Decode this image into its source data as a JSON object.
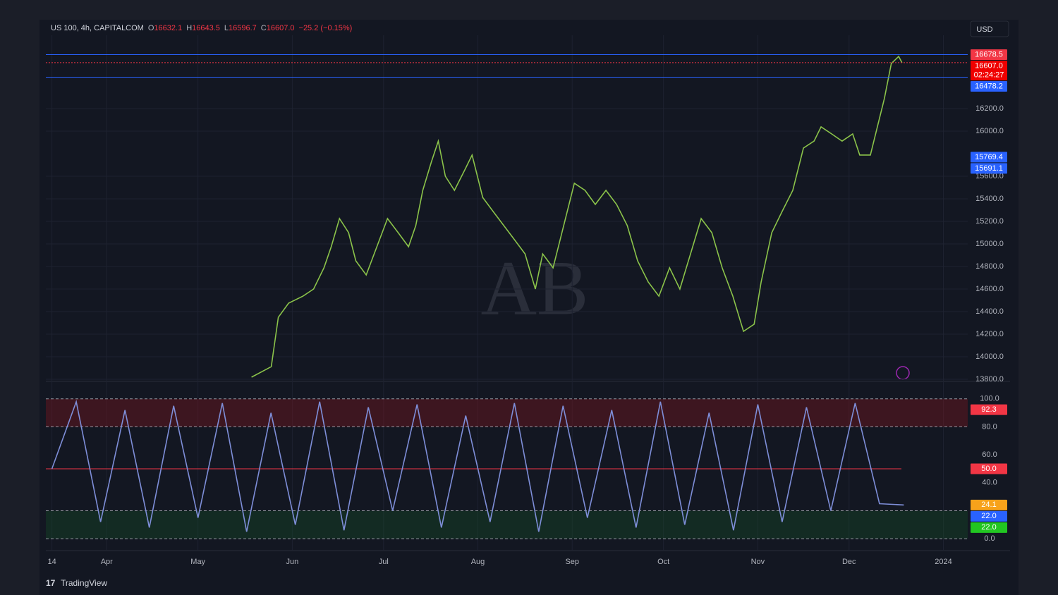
{
  "header": {
    "title": "US 100, 4h, CAPITALCOM",
    "ohlc": [
      {
        "label": "O",
        "text": "16632.1"
      },
      {
        "label": "H",
        "text": "16643.5"
      },
      {
        "label": "L",
        "text": "16596.7"
      },
      {
        "label": "C",
        "text": "16607.0"
      }
    ],
    "change": "−25.2 (−0.15%)",
    "currency": "USD"
  },
  "branding": "TradingView",
  "watermark": "AB",
  "chart_data": [
    {
      "type": "line",
      "color": "#8bc34a",
      "x": [
        65.6,
        72.1,
        74.4,
        77.8,
        82.5,
        86.0,
        89.4,
        91.8,
        94.5,
        97.5,
        99.9,
        103.3,
        106.8,
        110.3,
        113.8,
        117.2,
        119.6,
        121.9,
        124.7,
        127.0,
        129.3,
        132.3,
        135.8,
        138.1,
        141.6,
        145.0,
        148.5,
        152.0,
        155.5,
        158.9,
        161.3,
        164.7,
        168.2,
        171.7,
        175.2,
        178.6,
        182.1,
        185.6,
        189.1,
        192.5,
        196.0,
        199.5,
        203.0,
        206.4,
        209.9,
        213.4,
        216.9,
        220.3,
        223.8,
        227.3,
        230.8,
        233.1,
        236.6,
        240.0,
        243.5,
        247.0,
        250.5,
        252.8,
        256.3,
        259.7,
        263.2,
        265.5,
        269.0,
        271.3,
        273.6,
        275.9,
        278.3,
        279.4
      ],
      "values": [
        13819,
        13912,
        14350,
        14475,
        14537,
        14600,
        14788,
        14975,
        15225,
        15100,
        14850,
        14725,
        14975,
        15225,
        15100,
        14975,
        15163,
        15475,
        15725,
        15912,
        15600,
        15475,
        15662,
        15788,
        15412,
        15288,
        15163,
        15038,
        14912,
        14600,
        14912,
        14788,
        15163,
        15538,
        15475,
        15350,
        15475,
        15350,
        15163,
        14850,
        14662,
        14537,
        14788,
        14600,
        14912,
        15225,
        15100,
        14788,
        14537,
        14225,
        14288,
        14662,
        15100,
        15288,
        15475,
        15850,
        15912,
        16038,
        15975,
        15912,
        15975,
        15788,
        15788,
        16038,
        16288,
        16600,
        16662,
        16607
      ],
      "xlim": [
        -2,
        301
      ],
      "xticks": [
        {
          "value": 0,
          "label": "14"
        },
        {
          "value": 18,
          "label": "Apr"
        },
        {
          "value": 48,
          "label": "May"
        },
        {
          "value": 79,
          "label": "Jun"
        },
        {
          "value": 109,
          "label": "Jul"
        },
        {
          "value": 140,
          "label": "Aug"
        },
        {
          "value": 171,
          "label": "Sep"
        },
        {
          "value": 201,
          "label": "Oct"
        },
        {
          "value": 232,
          "label": "Nov"
        },
        {
          "value": 262,
          "label": "Dec"
        },
        {
          "value": 293,
          "label": "2024"
        }
      ],
      "ylim": [
        13787.5,
        16850
      ],
      "yticks": [
        {
          "value": 13800,
          "label": "13800.0"
        },
        {
          "value": 14000,
          "label": "14000.0"
        },
        {
          "value": 14200,
          "label": "14200.0"
        },
        {
          "value": 14400,
          "label": "14400.0"
        },
        {
          "value": 14600,
          "label": "14600.0"
        },
        {
          "value": 14800,
          "label": "14800.0"
        },
        {
          "value": 15000,
          "label": "15000.0"
        },
        {
          "value": 15200,
          "label": "15200.0"
        },
        {
          "value": 15400,
          "label": "15400.0"
        },
        {
          "value": 15600,
          "label": "15600.0"
        },
        {
          "value": 16000,
          "label": "16000.0"
        },
        {
          "value": 16200,
          "label": "16200.0"
        }
      ],
      "grid": true,
      "price_labels": [
        {
          "value": 16678.5,
          "color": "#f23645",
          "line": "solid",
          "line_color": "#2962ff"
        },
        {
          "value": 16607,
          "label": "16607.0",
          "countdown": "02:24:27",
          "color": "#f00000",
          "line": "dotted",
          "line_color": "#f23645"
        },
        {
          "value": 16478.2,
          "color": "#2962ff",
          "line": "solid",
          "line_color": "#2962ff"
        },
        {
          "value": 15769.4,
          "color": "#2962ff"
        },
        {
          "value": 15691.1,
          "color": "#2962ff"
        }
      ]
    },
    {
      "type": "line",
      "color": "#7e8ed8",
      "x": [
        0,
        8,
        16,
        24,
        32,
        40,
        48,
        56,
        64,
        72,
        80,
        88,
        96,
        104,
        112,
        120,
        128,
        136,
        144,
        152,
        160,
        168,
        176,
        184,
        192,
        200,
        208,
        216,
        224,
        232,
        240,
        248,
        256,
        264,
        272,
        280
      ],
      "values": [
        50,
        98,
        12,
        92,
        8,
        95,
        15,
        97,
        5,
        90,
        10,
        98,
        6,
        94,
        20,
        96,
        8,
        88,
        12,
        97,
        5,
        95,
        15,
        92,
        8,
        98,
        10,
        90,
        6,
        96,
        12,
        94,
        20,
        97,
        25,
        24.1
      ],
      "xlim": [
        -2,
        301
      ],
      "ylim": [
        -8,
        112
      ],
      "yticks": [
        {
          "value": 0,
          "label": "0.0"
        },
        {
          "value": 40,
          "label": "40.0"
        },
        {
          "value": 60,
          "label": "60.0"
        },
        {
          "value": 80,
          "label": "80.0"
        },
        {
          "value": 100,
          "label": "100.0"
        }
      ],
      "bands": [
        {
          "from": 80,
          "to": 100,
          "color": "rgba(140,20,30,0.35)"
        },
        {
          "from": 0,
          "to": 20,
          "color": "rgba(20,90,40,0.3)"
        }
      ],
      "dashed_levels": [
        100,
        80,
        20,
        0
      ],
      "midline": 50,
      "price_labels": [
        {
          "value": 92.3,
          "color": "#f23645"
        },
        {
          "value": 50,
          "label": "50.0",
          "color": "#f23645"
        },
        {
          "value": 24.1,
          "color": "#f7a21b"
        },
        {
          "value": 22,
          "label": "22.0",
          "color": "#2962ff"
        },
        {
          "value": 22,
          "label": "22.0",
          "color": "#22c622"
        }
      ]
    }
  ]
}
